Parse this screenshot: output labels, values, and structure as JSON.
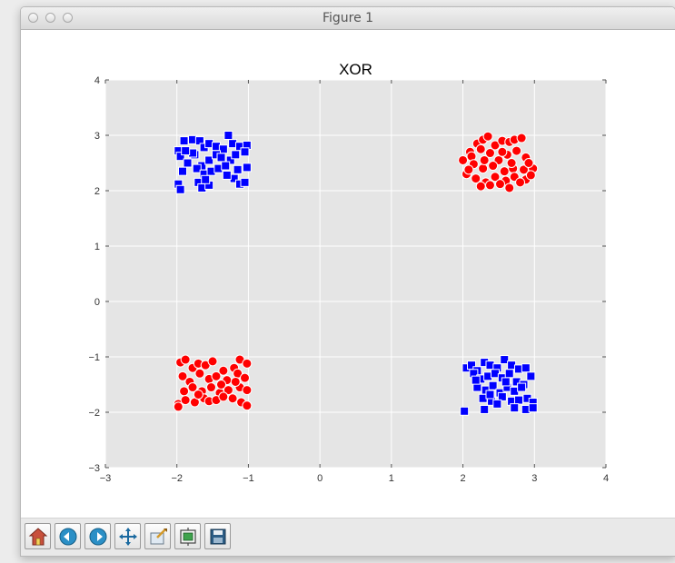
{
  "window": {
    "title": "Figure 1"
  },
  "toolbar": {
    "buttons": [
      {
        "name": "home-button",
        "icon": "home-icon"
      },
      {
        "name": "back-button",
        "icon": "back-arrow-icon"
      },
      {
        "name": "forward-button",
        "icon": "forward-arrow-icon"
      },
      {
        "name": "pan-button",
        "icon": "move-arrows-icon"
      },
      {
        "name": "zoom-button",
        "icon": "zoom-rect-icon"
      },
      {
        "name": "configure-subplots-button",
        "icon": "subplots-icon"
      },
      {
        "name": "save-button",
        "icon": "floppy-disk-icon"
      }
    ]
  },
  "colors": {
    "plot_background": "#e5e5e5",
    "grid": "#ffffff",
    "class_a": "#ff0000",
    "class_b": "#0000ff"
  },
  "chart_data": {
    "type": "scatter",
    "title": "XOR",
    "xlabel": "",
    "ylabel": "",
    "xlim": [
      -3,
      4
    ],
    "ylim": [
      -3,
      4
    ],
    "xticks": [
      -3,
      -2,
      -1,
      0,
      1,
      2,
      3,
      4
    ],
    "yticks": [
      -3,
      -2,
      -1,
      0,
      1,
      2,
      3,
      4
    ],
    "xtick_labels": [
      "−3",
      "−2",
      "−1",
      "0",
      "1",
      "2",
      "3",
      "4"
    ],
    "ytick_labels": [
      "−3",
      "−2",
      "−1",
      "0",
      "1",
      "2",
      "3",
      "4"
    ],
    "grid": true,
    "series": [
      {
        "marker": "square",
        "color": "#0000ff",
        "points": [
          [
            -1.98,
            2.72
          ],
          [
            -1.9,
            2.9
          ],
          [
            -1.78,
            2.92
          ],
          [
            -1.68,
            2.9
          ],
          [
            -1.62,
            2.78
          ],
          [
            -1.55,
            2.85
          ],
          [
            -1.45,
            2.8
          ],
          [
            -1.35,
            2.75
          ],
          [
            -1.28,
            3.0
          ],
          [
            -1.22,
            2.85
          ],
          [
            -1.12,
            2.8
          ],
          [
            -1.02,
            2.82
          ],
          [
            -1.95,
            2.62
          ],
          [
            -1.85,
            2.5
          ],
          [
            -1.75,
            2.65
          ],
          [
            -1.65,
            2.45
          ],
          [
            -1.55,
            2.55
          ],
          [
            -1.45,
            2.65
          ],
          [
            -1.38,
            2.6
          ],
          [
            -1.25,
            2.55
          ],
          [
            -1.18,
            2.65
          ],
          [
            -1.05,
            2.7
          ],
          [
            -1.92,
            2.35
          ],
          [
            -1.72,
            2.4
          ],
          [
            -1.62,
            2.3
          ],
          [
            -1.52,
            2.35
          ],
          [
            -1.42,
            2.4
          ],
          [
            -1.32,
            2.45
          ],
          [
            -1.15,
            2.38
          ],
          [
            -1.02,
            2.42
          ],
          [
            -1.98,
            2.12
          ],
          [
            -1.95,
            2.02
          ],
          [
            -1.7,
            2.15
          ],
          [
            -1.65,
            2.05
          ],
          [
            -1.55,
            2.1
          ],
          [
            -1.2,
            2.22
          ],
          [
            -1.12,
            2.12
          ],
          [
            -1.05,
            2.15
          ],
          [
            -1.78,
            2.68
          ],
          [
            -1.88,
            2.72
          ],
          [
            -1.6,
            2.2
          ],
          [
            -1.3,
            2.28
          ]
        ]
      },
      {
        "marker": "circle",
        "color": "#ff0000",
        "points": [
          [
            2.1,
            2.7
          ],
          [
            2.2,
            2.85
          ],
          [
            2.28,
            2.92
          ],
          [
            2.35,
            2.98
          ],
          [
            2.45,
            2.82
          ],
          [
            2.55,
            2.9
          ],
          [
            2.65,
            2.88
          ],
          [
            2.72,
            2.92
          ],
          [
            2.82,
            2.95
          ],
          [
            2.12,
            2.62
          ],
          [
            2.25,
            2.75
          ],
          [
            2.38,
            2.68
          ],
          [
            2.5,
            2.55
          ],
          [
            2.62,
            2.65
          ],
          [
            2.75,
            2.72
          ],
          [
            2.88,
            2.6
          ],
          [
            2.0,
            2.55
          ],
          [
            2.15,
            2.48
          ],
          [
            2.28,
            2.4
          ],
          [
            2.42,
            2.45
          ],
          [
            2.58,
            2.35
          ],
          [
            2.7,
            2.4
          ],
          [
            2.85,
            2.38
          ],
          [
            2.98,
            2.4
          ],
          [
            2.05,
            2.3
          ],
          [
            2.18,
            2.22
          ],
          [
            2.32,
            2.15
          ],
          [
            2.45,
            2.25
          ],
          [
            2.6,
            2.18
          ],
          [
            2.72,
            2.25
          ],
          [
            2.88,
            2.2
          ],
          [
            2.95,
            2.28
          ],
          [
            2.08,
            2.38
          ],
          [
            2.25,
            2.08
          ],
          [
            2.38,
            2.1
          ],
          [
            2.52,
            2.12
          ],
          [
            2.65,
            2.05
          ],
          [
            2.8,
            2.15
          ],
          [
            2.92,
            2.5
          ],
          [
            2.3,
            2.55
          ],
          [
            2.55,
            2.7
          ],
          [
            2.68,
            2.5
          ]
        ]
      },
      {
        "marker": "circle",
        "color": "#ff0000",
        "points": [
          [
            -1.95,
            -1.1
          ],
          [
            -1.88,
            -1.05
          ],
          [
            -1.78,
            -1.2
          ],
          [
            -1.7,
            -1.12
          ],
          [
            -1.6,
            -1.15
          ],
          [
            -1.5,
            -1.08
          ],
          [
            -1.35,
            -1.25
          ],
          [
            -1.2,
            -1.2
          ],
          [
            -1.12,
            -1.05
          ],
          [
            -1.02,
            -1.12
          ],
          [
            -1.92,
            -1.35
          ],
          [
            -1.82,
            -1.45
          ],
          [
            -1.68,
            -1.3
          ],
          [
            -1.55,
            -1.4
          ],
          [
            -1.45,
            -1.35
          ],
          [
            -1.3,
            -1.42
          ],
          [
            -1.15,
            -1.3
          ],
          [
            -1.05,
            -1.38
          ],
          [
            -1.9,
            -1.62
          ],
          [
            -1.78,
            -1.55
          ],
          [
            -1.65,
            -1.62
          ],
          [
            -1.52,
            -1.55
          ],
          [
            -1.4,
            -1.65
          ],
          [
            -1.28,
            -1.6
          ],
          [
            -1.12,
            -1.55
          ],
          [
            -1.02,
            -1.6
          ],
          [
            -1.98,
            -1.85
          ],
          [
            -1.88,
            -1.78
          ],
          [
            -1.75,
            -1.82
          ],
          [
            -1.62,
            -1.75
          ],
          [
            -1.55,
            -1.8
          ],
          [
            -1.45,
            -1.78
          ],
          [
            -1.35,
            -1.72
          ],
          [
            -1.22,
            -1.75
          ],
          [
            -1.1,
            -1.82
          ],
          [
            -1.02,
            -1.88
          ],
          [
            -1.98,
            -1.9
          ],
          [
            -1.7,
            -1.68
          ],
          [
            -1.18,
            -1.45
          ],
          [
            -1.38,
            -1.5
          ]
        ]
      },
      {
        "marker": "square",
        "color": "#0000ff",
        "points": [
          [
            2.05,
            -1.2
          ],
          [
            2.12,
            -1.15
          ],
          [
            2.2,
            -1.25
          ],
          [
            2.3,
            -1.1
          ],
          [
            2.38,
            -1.15
          ],
          [
            2.48,
            -1.2
          ],
          [
            2.58,
            -1.05
          ],
          [
            2.68,
            -1.15
          ],
          [
            2.78,
            -1.22
          ],
          [
            2.88,
            -1.2
          ],
          [
            2.15,
            -1.3
          ],
          [
            2.25,
            -1.4
          ],
          [
            2.35,
            -1.35
          ],
          [
            2.45,
            -1.3
          ],
          [
            2.55,
            -1.38
          ],
          [
            2.65,
            -1.3
          ],
          [
            2.75,
            -1.45
          ],
          [
            2.85,
            -1.5
          ],
          [
            2.95,
            -1.35
          ],
          [
            2.2,
            -1.55
          ],
          [
            2.32,
            -1.6
          ],
          [
            2.42,
            -1.52
          ],
          [
            2.52,
            -1.65
          ],
          [
            2.62,
            -1.55
          ],
          [
            2.72,
            -1.62
          ],
          [
            2.82,
            -1.55
          ],
          [
            2.28,
            -1.75
          ],
          [
            2.4,
            -1.8
          ],
          [
            2.55,
            -1.72
          ],
          [
            2.68,
            -1.8
          ],
          [
            2.78,
            -1.78
          ],
          [
            2.9,
            -1.75
          ],
          [
            2.98,
            -1.82
          ],
          [
            2.02,
            -1.98
          ],
          [
            2.3,
            -1.95
          ],
          [
            2.48,
            -1.85
          ],
          [
            2.72,
            -1.92
          ],
          [
            2.88,
            -1.95
          ],
          [
            2.98,
            -1.92
          ],
          [
            2.6,
            -1.45
          ],
          [
            2.38,
            -1.68
          ],
          [
            2.18,
            -1.42
          ]
        ]
      }
    ]
  }
}
